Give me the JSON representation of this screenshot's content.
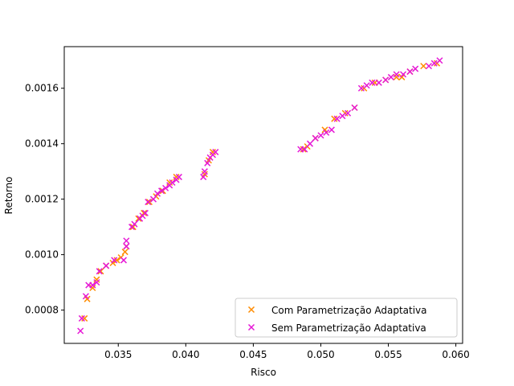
{
  "chart_data": {
    "type": "scatter",
    "title": "",
    "xlabel": "Risco",
    "ylabel": "Retorno",
    "xlim": [
      0.031,
      0.0605
    ],
    "ylim": [
      0.00068,
      0.00175
    ],
    "xticks": [
      0.035,
      0.04,
      0.045,
      0.05,
      0.055,
      0.06
    ],
    "xtick_labels": [
      "0.035",
      "0.040",
      "0.045",
      "0.050",
      "0.055",
      "0.060"
    ],
    "yticks": [
      0.0008,
      0.001,
      0.0012,
      0.0014,
      0.0016
    ],
    "ytick_labels": [
      "0.0008",
      "0.0010",
      "0.0012",
      "0.0014",
      "0.0016"
    ],
    "grid": false,
    "legend_position": "lower-right",
    "marker": "x",
    "series": [
      {
        "name": "Com Parametrização Adaptativa",
        "color": "#ff8c00",
        "x": [
          0.0325,
          0.0327,
          0.0331,
          0.0334,
          0.0337,
          0.0341,
          0.0346,
          0.0349,
          0.0352,
          0.0355,
          0.0356,
          0.0361,
          0.0365,
          0.0369,
          0.0373,
          0.0378,
          0.0383,
          0.0388,
          0.0393,
          0.0414,
          0.0417,
          0.042,
          0.0487,
          0.049,
          0.0496,
          0.0503,
          0.051,
          0.0518,
          0.0525,
          0.0532,
          0.054,
          0.0548,
          0.0556,
          0.056,
          0.0566,
          0.0576,
          0.0586
        ],
        "y": [
          0.00077,
          0.00084,
          0.00088,
          0.00091,
          0.00094,
          0.00096,
          0.00097,
          0.00098,
          0.00099,
          0.00101,
          0.00103,
          0.0011,
          0.00113,
          0.00115,
          0.00119,
          0.00121,
          0.00123,
          0.00126,
          0.00128,
          0.00129,
          0.00134,
          0.00137,
          0.00138,
          0.00139,
          0.00142,
          0.00145,
          0.00149,
          0.00151,
          0.00153,
          0.0016,
          0.00162,
          0.00163,
          0.00164,
          0.00164,
          0.00166,
          0.00168,
          0.00169
        ]
      },
      {
        "name": "Sem Parametrização Adaptativa",
        "color": "#e619d6",
        "x": [
          0.0322,
          0.0323,
          0.0326,
          0.0328,
          0.0331,
          0.0334,
          0.0336,
          0.0341,
          0.0347,
          0.0354,
          0.0356,
          0.0356,
          0.036,
          0.0362,
          0.0366,
          0.0368,
          0.037,
          0.0372,
          0.0376,
          0.0379,
          0.0382,
          0.0385,
          0.0388,
          0.039,
          0.0393,
          0.0395,
          0.0413,
          0.0414,
          0.0416,
          0.0418,
          0.042,
          0.0422,
          0.0485,
          0.0488,
          0.0492,
          0.0496,
          0.05,
          0.0504,
          0.0508,
          0.0512,
          0.0516,
          0.052,
          0.0525,
          0.053,
          0.0534,
          0.0538,
          0.0543,
          0.0548,
          0.0552,
          0.0556,
          0.0561,
          0.0566,
          0.057,
          0.058,
          0.0584,
          0.0588
        ],
        "y": [
          0.000725,
          0.00077,
          0.00085,
          0.00089,
          0.00089,
          0.0009,
          0.00094,
          0.00096,
          0.00098,
          0.00098,
          0.00103,
          0.00105,
          0.0011,
          0.00111,
          0.00113,
          0.00114,
          0.00115,
          0.00119,
          0.0012,
          0.00122,
          0.00123,
          0.00124,
          0.00125,
          0.00126,
          0.00127,
          0.00128,
          0.00128,
          0.0013,
          0.00133,
          0.00135,
          0.00136,
          0.00137,
          0.00138,
          0.00138,
          0.0014,
          0.00142,
          0.00143,
          0.00144,
          0.00145,
          0.00149,
          0.0015,
          0.00151,
          0.00153,
          0.0016,
          0.00161,
          0.00162,
          0.00162,
          0.00163,
          0.00164,
          0.00165,
          0.00165,
          0.00166,
          0.00167,
          0.00168,
          0.00169,
          0.0017
        ]
      }
    ]
  }
}
